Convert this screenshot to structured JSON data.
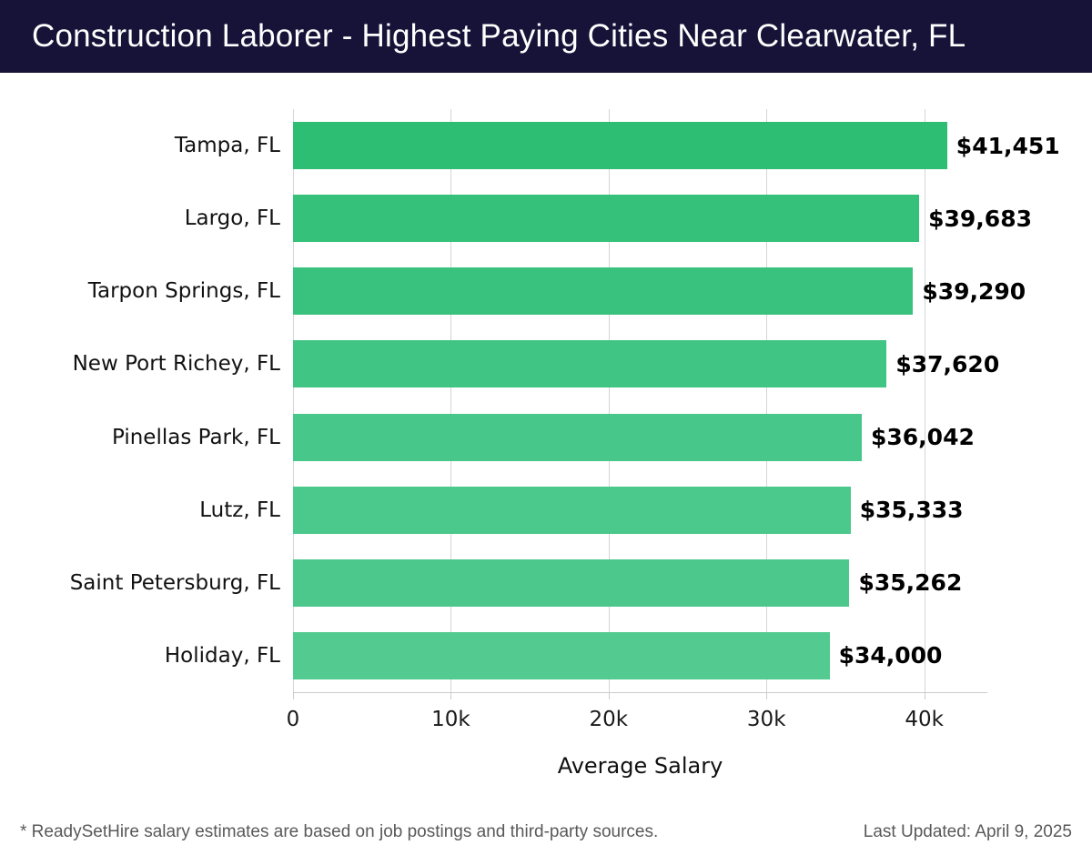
{
  "header": {
    "title": "Construction Laborer - Highest Paying Cities Near Clearwater, FL"
  },
  "chart_data": {
    "type": "bar",
    "orientation": "horizontal",
    "title": "Construction Laborer - Highest Paying Cities Near Clearwater, FL",
    "categories": [
      "Tampa, FL",
      "Largo, FL",
      "Tarpon Springs, FL",
      "New Port Richey, FL",
      "Pinellas Park, FL",
      "Lutz, FL",
      "Saint Petersburg, FL",
      "Holiday, FL"
    ],
    "values": [
      41451,
      39683,
      39290,
      37620,
      36042,
      35333,
      35262,
      34000
    ],
    "value_labels": [
      "$41,451",
      "$39,683",
      "$39,290",
      "$37,620",
      "$36,042",
      "$35,333",
      "$35,262",
      "$34,000"
    ],
    "bar_colors": [
      "#2DBE73",
      "#35C17A",
      "#38C27D",
      "#41C584",
      "#47C789",
      "#4BC88C",
      "#4CC88C",
      "#52CA90"
    ],
    "xlabel": "Average Salary",
    "ylabel": "",
    "xlim": [
      0,
      44000
    ],
    "x_ticks": [
      0,
      10000,
      20000,
      30000,
      40000
    ],
    "x_tick_labels": [
      "0",
      "10k",
      "20k",
      "30k",
      "40k"
    ],
    "grid": "vertical",
    "legend": "none"
  },
  "colors": {
    "header_bg": "#171238",
    "header_text": "#ffffff",
    "gridline": "#d5d5d5",
    "axis_spine": "#cccccc",
    "label_text": "#111111",
    "footer_text": "#595959"
  },
  "footer": {
    "note": "* ReadySetHire salary estimates are based on job postings and third-party sources.",
    "last_updated": "Last Updated: April 9, 2025"
  }
}
